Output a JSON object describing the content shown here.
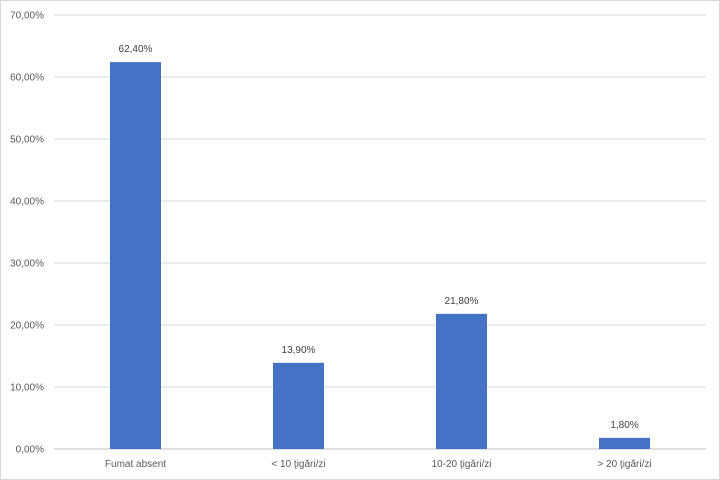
{
  "chart_data": {
    "type": "bar",
    "title": "",
    "xlabel": "",
    "ylabel": "",
    "categories": [
      "Fumat absent",
      "< 10 ţigări/zi",
      "10-20 ţigări/zi",
      "> 20 ţigări/zi"
    ],
    "values": [
      62.4,
      13.9,
      21.8,
      1.8
    ],
    "data_labels": [
      "62,40%",
      "13,90%",
      "21,80%",
      "1,80%"
    ],
    "ylim": [
      0,
      70
    ],
    "yticks": [
      0,
      10,
      20,
      30,
      40,
      50,
      60,
      70
    ],
    "ytick_labels": [
      "0,00%",
      "10,00%",
      "20,00%",
      "30,00%",
      "40,00%",
      "50,00%",
      "60,00%",
      "70,00%"
    ],
    "grid": true,
    "legend": "none",
    "colors": {
      "bar": "#4472C4",
      "grid": "#d9d9d9",
      "axis": "#bfbfbf"
    }
  }
}
